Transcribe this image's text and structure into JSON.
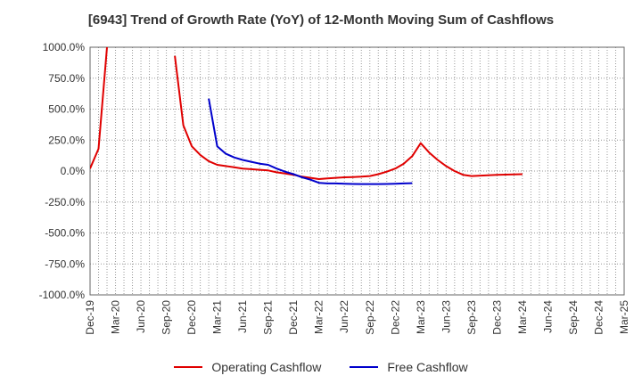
{
  "chart_data": {
    "type": "line",
    "title": "[6943]  Trend of Growth Rate (YoY) of 12-Month Moving Sum of Cashflows",
    "xlabel": "",
    "ylabel": "",
    "ylim": [
      -1000,
      1000
    ],
    "y_ticks": [
      -1000,
      -750,
      -500,
      -250,
      0,
      250,
      500,
      750,
      1000
    ],
    "y_tick_labels": [
      "-1000.0%",
      "-750.0%",
      "-500.0%",
      "-250.0%",
      "0.0%",
      "250.0%",
      "500.0%",
      "750.0%",
      "1000.0%"
    ],
    "x_tick_labels": [
      "Dec-19",
      "Mar-20",
      "Jun-20",
      "Sep-20",
      "Dec-20",
      "Mar-21",
      "Jun-21",
      "Sep-21",
      "Dec-21",
      "Mar-22",
      "Jun-22",
      "Sep-22",
      "Dec-22",
      "Mar-23",
      "Jun-23",
      "Sep-23",
      "Dec-23",
      "Mar-24",
      "Jun-24",
      "Sep-24",
      "Dec-24",
      "Mar-25"
    ],
    "grid": true,
    "legend_placement": "bottom",
    "series": [
      {
        "name": "Operating Cashflow",
        "color": "#e00000",
        "x": [
          "Dec-19",
          "Jan-20",
          "Feb-20",
          "Mar-20",
          "Oct-20",
          "Nov-20",
          "Dec-20",
          "Jan-21",
          "Feb-21",
          "Mar-21",
          "Apr-21",
          "May-21",
          "Jun-21",
          "Jul-21",
          "Aug-21",
          "Sep-21",
          "Oct-21",
          "Nov-21",
          "Dec-21",
          "Jan-22",
          "Feb-22",
          "Mar-22",
          "Apr-22",
          "May-22",
          "Jun-22",
          "Jul-22",
          "Aug-22",
          "Sep-22",
          "Oct-22",
          "Nov-22",
          "Dec-22",
          "Jan-23",
          "Feb-23",
          "Mar-23",
          "Apr-23",
          "May-23",
          "Jun-23",
          "Jul-23",
          "Aug-23",
          "Sep-23",
          "Dec-23",
          "Mar-24"
        ],
        "values": [
          20,
          180,
          1000,
          null,
          930,
          370,
          200,
          130,
          80,
          50,
          40,
          30,
          20,
          15,
          10,
          5,
          -10,
          -20,
          -30,
          -45,
          -55,
          -65,
          -60,
          -55,
          -50,
          -48,
          -45,
          -40,
          -25,
          -5,
          20,
          60,
          120,
          225,
          150,
          90,
          40,
          0,
          -30,
          -40,
          -30,
          -25
        ]
      },
      {
        "name": "Free Cashflow",
        "color": "#0000cc",
        "x": [
          "Feb-21",
          "Mar-21",
          "Apr-21",
          "May-21",
          "Jun-21",
          "Jul-21",
          "Aug-21",
          "Sep-21",
          "Oct-21",
          "Nov-21",
          "Dec-21",
          "Jan-22",
          "Feb-22",
          "Mar-22",
          "Apr-22",
          "May-22",
          "Jun-22",
          "Jul-22",
          "Aug-22",
          "Sep-22",
          "Oct-22",
          "Nov-22",
          "Dec-22",
          "Jan-23",
          "Feb-23"
        ],
        "values": [
          585,
          200,
          140,
          110,
          90,
          75,
          60,
          50,
          20,
          -5,
          -25,
          -50,
          -70,
          -95,
          -100,
          -100,
          -102,
          -104,
          -105,
          -105,
          -105,
          -104,
          -103,
          -100,
          -98
        ]
      }
    ]
  }
}
